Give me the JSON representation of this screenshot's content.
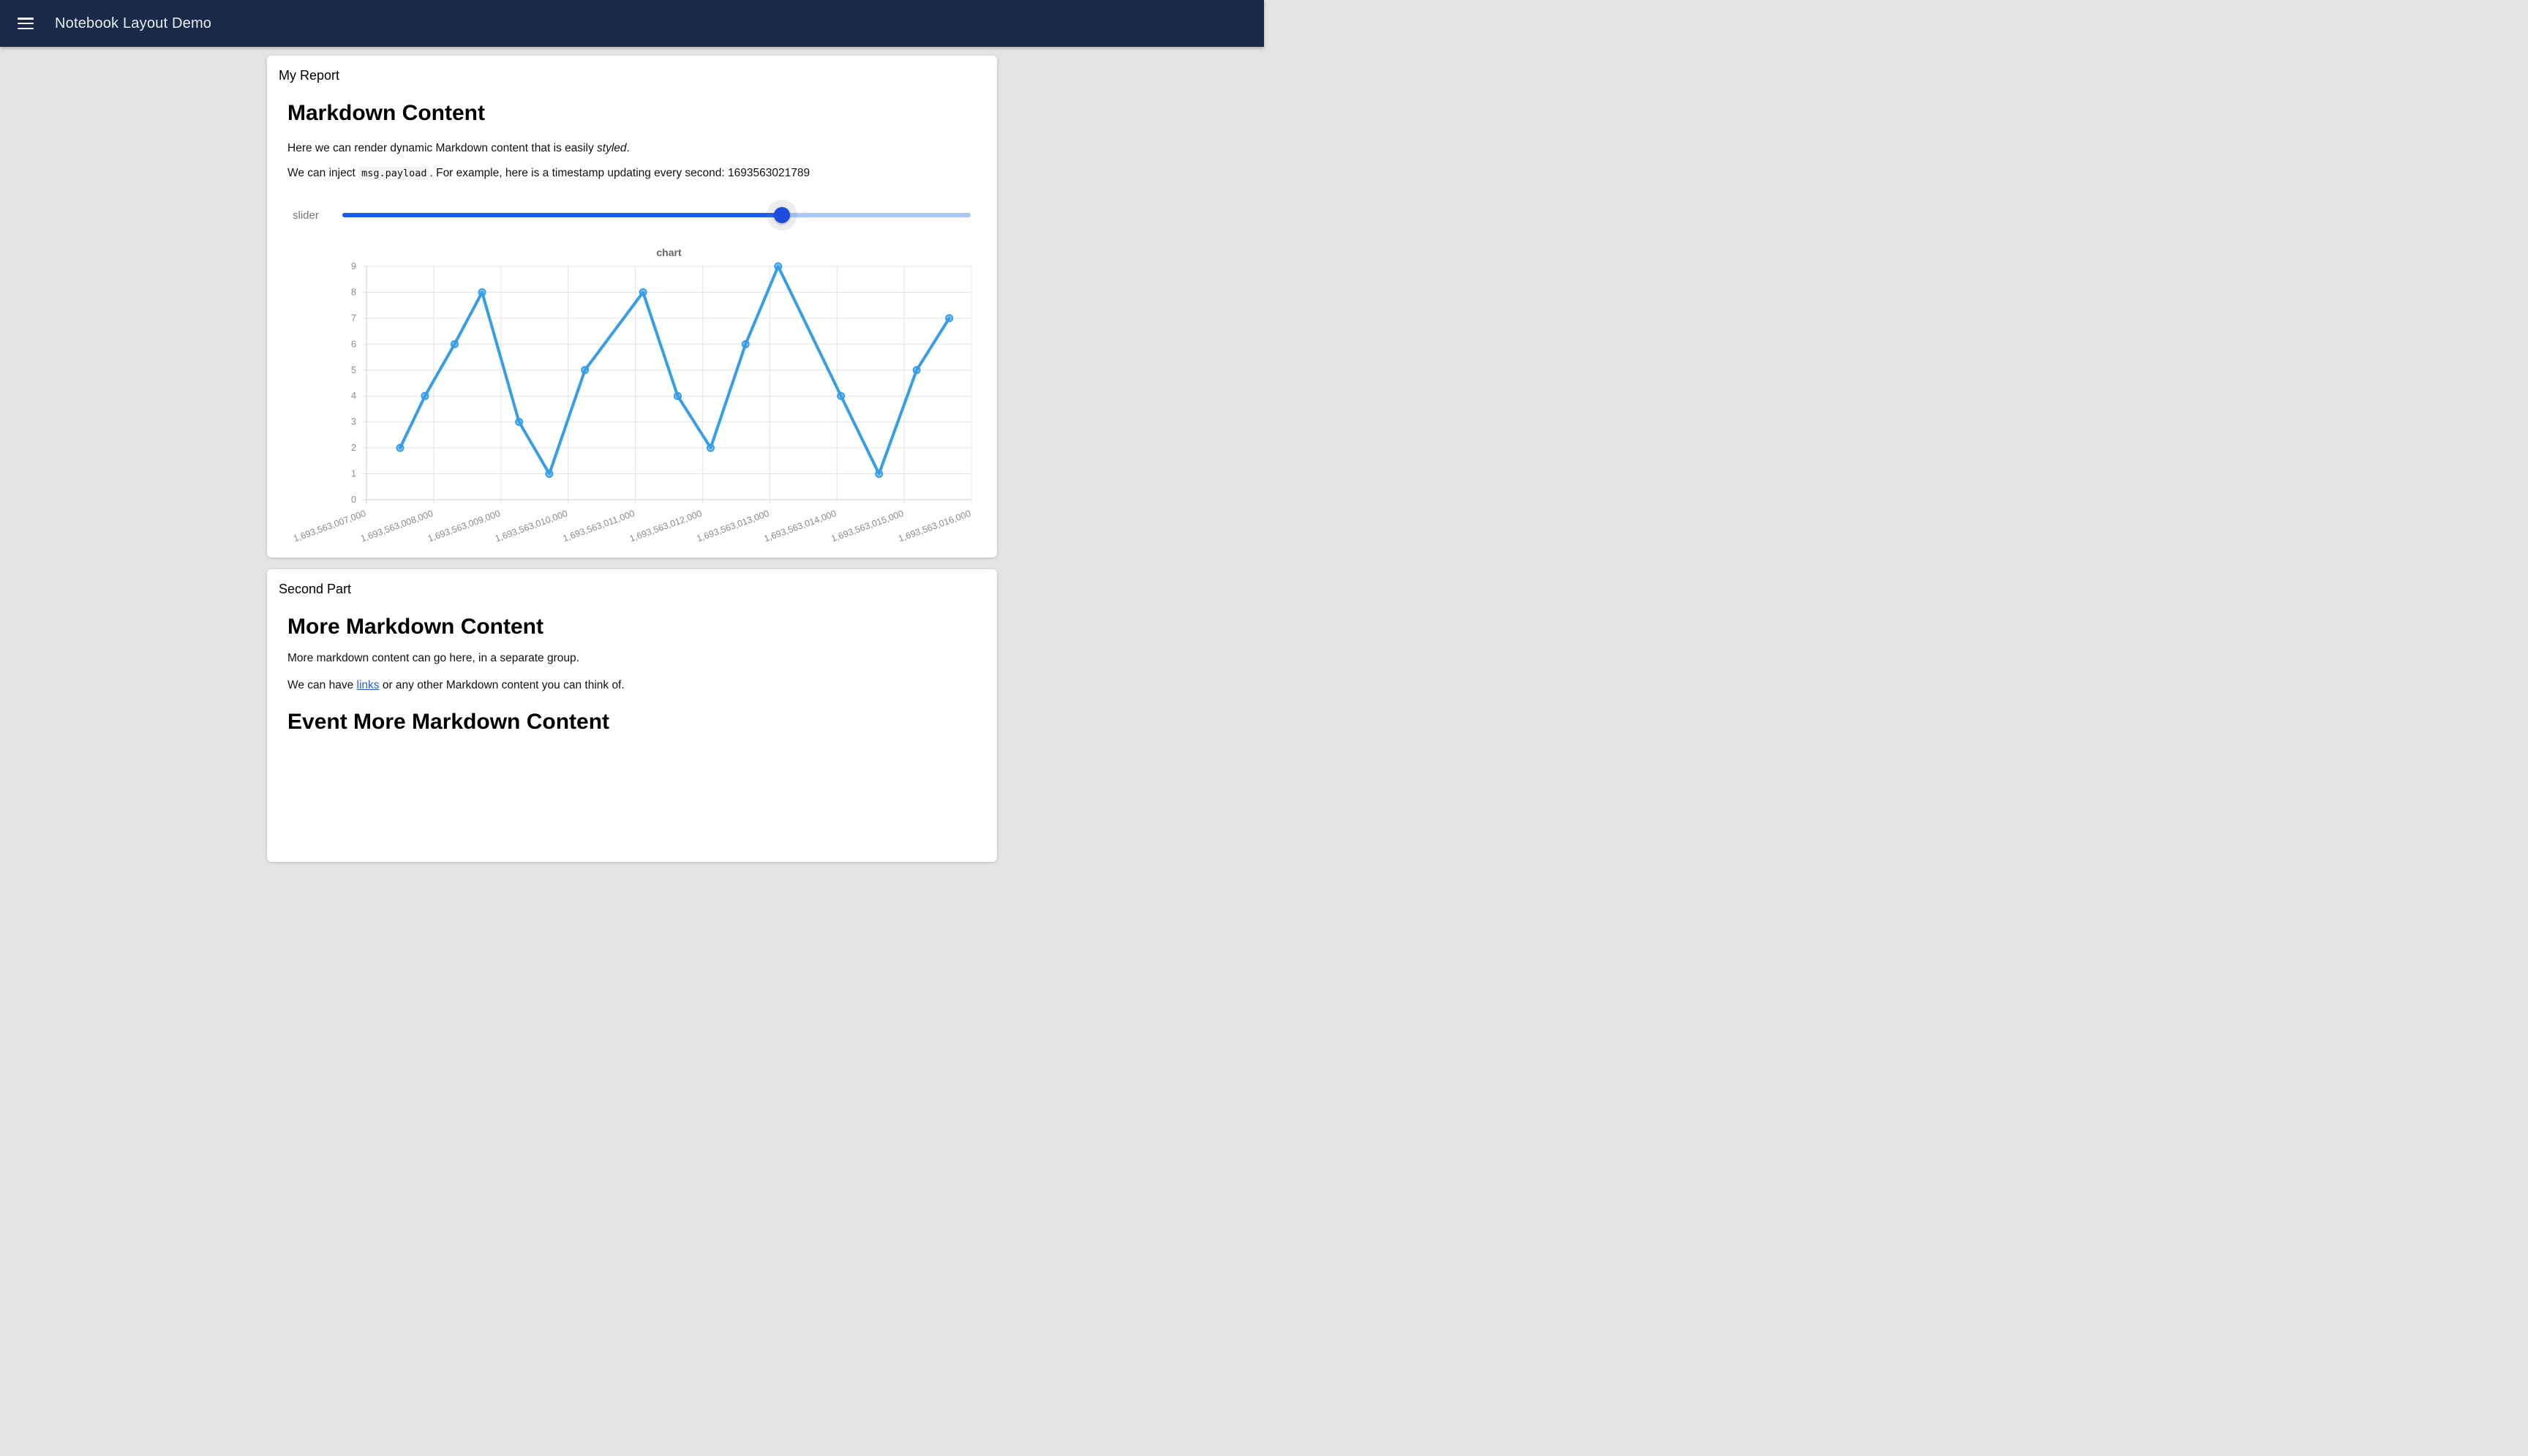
{
  "header": {
    "title": "Notebook Layout Demo",
    "menu_icon": "hamburger"
  },
  "report_card": {
    "group_label": "My Report",
    "heading": "Markdown Content",
    "para1_prefix": "Here we can render dynamic Markdown content that is easily ",
    "para1_italic": "styled",
    "para1_suffix": ".",
    "para2_prefix": "We can inject ",
    "para2_code": "msg.payload",
    "para2_mid": ". For example, here is a timestamp updating every second: ",
    "timestamp": "1693563021789",
    "slider": {
      "label": "slider",
      "percent": 70,
      "fill_color": "#1a5cf0",
      "track_color": "#a9c6fa",
      "thumb_color": "#1d4ddd"
    }
  },
  "second_card": {
    "group_label": "Second Part",
    "heading": "More Markdown Content",
    "para1": "More markdown content can go here, in a separate group.",
    "para2_prefix": "We can have ",
    "para2_link": "links",
    "para2_suffix": " or any other Markdown content you can think of.",
    "heading2": "Event More Markdown Content"
  },
  "chart_data": {
    "type": "line",
    "title": "chart",
    "legend": "none",
    "grid": true,
    "line_color": "#369de8",
    "ylim": [
      0,
      9
    ],
    "y_ticks": [
      0,
      1,
      2,
      3,
      4,
      5,
      6,
      7,
      8,
      9
    ],
    "x_range": [
      1693563007000,
      1693563016000
    ],
    "x_tick_values": [
      1693563007000,
      1693563008000,
      1693563009000,
      1693563010000,
      1693563011000,
      1693563012000,
      1693563013000,
      1693563014000,
      1693563015000,
      1693563016000
    ],
    "x_tick_labels": [
      "1,693,563,007,000",
      "1,693,563,008,000",
      "1,693,563,009,000",
      "1,693,563,010,000",
      "1,693,563,011,000",
      "1,693,563,012,000",
      "1,693,563,013,000",
      "1,693,563,014,000",
      "1,693,563,015,000",
      "1,693,563,016,000"
    ],
    "x": [
      1693563007500,
      1693563007870,
      1693563008310,
      1693563008720,
      1693563009270,
      1693563009720,
      1693563010250,
      1693563011115,
      1693563011630,
      1693563012120,
      1693563012640,
      1693563013125,
      1693563014060,
      1693563014625,
      1693563015185,
      1693563015670
    ],
    "values": [
      2,
      4,
      6,
      8,
      3,
      1,
      5,
      8,
      4,
      2,
      6,
      9,
      4,
      1,
      5,
      7
    ]
  },
  "colors": {
    "appbar_bg": "#1a2b49",
    "page_bg": "#e4e4e4",
    "card_bg": "#ffffff",
    "grid_line": "#e4e4e4",
    "tick_text": "#8a8a8a",
    "chart_title": "#666666",
    "link": "#2b5ce6"
  }
}
